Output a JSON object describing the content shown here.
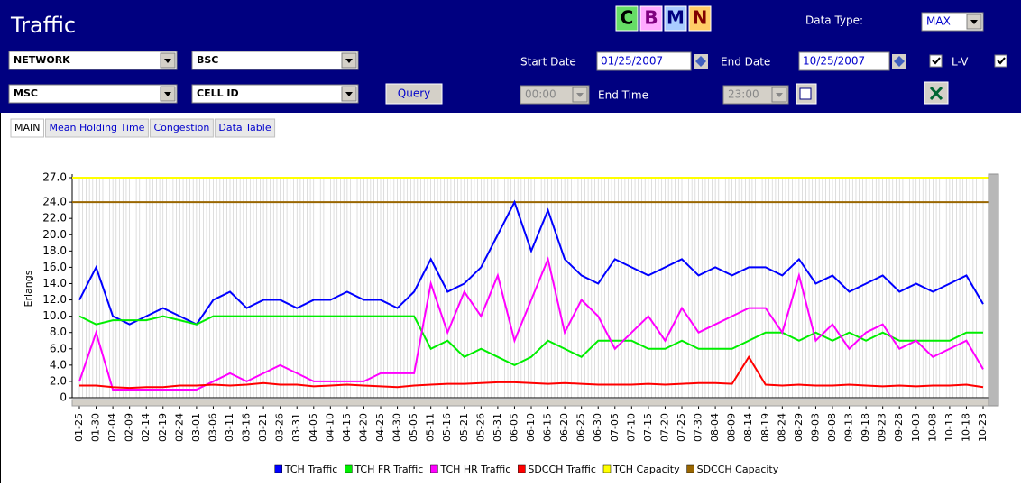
{
  "header": {
    "title": "Traffic",
    "buttons": [
      "C",
      "B",
      "M",
      "N"
    ],
    "data_type_label": "Data Type:",
    "data_type": "MAX",
    "selects": [
      "NETWORK",
      "BSC",
      "MSC",
      "CELL ID"
    ],
    "query": "Query",
    "start_date_label": "Start Date",
    "start_date": "01/25/2007",
    "end_date_label": "End Date",
    "end_date": "10/25/2007",
    "lv_label": "L-V",
    "start_time": "00:00",
    "end_time_label": "End Time",
    "end_time": "23:00"
  },
  "tabs": [
    "MAIN",
    "Mean Holding Time",
    "Congestion",
    "Data Table"
  ],
  "chart_data": {
    "type": "line",
    "y_label": "Erlangs",
    "categories": [
      "01-25",
      "01-30",
      "02-04",
      "02-09",
      "02-14",
      "02-19",
      "02-24",
      "03-01",
      "03-06",
      "03-11",
      "03-16",
      "03-21",
      "03-26",
      "03-31",
      "04-05",
      "04-10",
      "04-15",
      "04-20",
      "04-25",
      "04-30",
      "05-05",
      "05-11",
      "05-16",
      "05-21",
      "05-26",
      "05-31",
      "06-05",
      "06-10",
      "06-15",
      "06-20",
      "06-25",
      "06-30",
      "07-05",
      "07-10",
      "07-15",
      "07-20",
      "07-25",
      "07-30",
      "08-04",
      "08-09",
      "08-14",
      "08-19",
      "08-24",
      "08-29",
      "09-03",
      "09-08",
      "09-13",
      "09-18",
      "09-23",
      "09-28",
      "10-03",
      "10-08",
      "10-13",
      "10-18",
      "10-23"
    ],
    "series": [
      {
        "name": "TCH Traffic",
        "color": "#0000ff",
        "values": [
          12,
          16,
          10,
          9,
          10,
          11,
          10,
          9,
          12,
          13,
          11,
          12,
          12,
          11,
          12,
          12,
          13,
          12,
          12,
          11,
          13,
          17,
          13,
          14,
          16,
          20,
          24,
          18,
          23,
          17,
          15,
          14,
          17,
          16,
          15,
          16,
          17,
          15,
          16,
          15,
          16,
          16,
          15,
          17,
          14,
          15,
          13,
          14,
          15,
          13,
          14,
          13,
          14,
          15,
          11.5
        ]
      },
      {
        "name": "TCH FR Traffic",
        "color": "#00ee00",
        "values": [
          10,
          9,
          9.5,
          9.5,
          9.5,
          10,
          9.5,
          9,
          10,
          10,
          10,
          10,
          10,
          10,
          10,
          10,
          10,
          10,
          10,
          10,
          10,
          6,
          7,
          5,
          6,
          5,
          4,
          5,
          7,
          6,
          5,
          7,
          7,
          7,
          6,
          6,
          7,
          6,
          6,
          6,
          7,
          8,
          8,
          7,
          8,
          7,
          8,
          7,
          8,
          7,
          7,
          7,
          7,
          8,
          8
        ]
      },
      {
        "name": "TCH HR Traffic",
        "color": "#ff00ff",
        "values": [
          2,
          8,
          1,
          1,
          1,
          1,
          1,
          1,
          2,
          3,
          2,
          3,
          4,
          3,
          2,
          2,
          2,
          2,
          3,
          3,
          3,
          14,
          8,
          13,
          10,
          15,
          7,
          12,
          17,
          8,
          12,
          10,
          6,
          8,
          10,
          7,
          11,
          8,
          9,
          10,
          11,
          11,
          8,
          15,
          7,
          9,
          6,
          8,
          9,
          6,
          7,
          5,
          6,
          7,
          3.5
        ]
      },
      {
        "name": "SDCCH Traffic",
        "color": "#ff0000",
        "values": [
          1.5,
          1.5,
          1.3,
          1.2,
          1.3,
          1.3,
          1.5,
          1.5,
          1.6,
          1.5,
          1.6,
          1.8,
          1.6,
          1.6,
          1.4,
          1.5,
          1.6,
          1.5,
          1.4,
          1.3,
          1.5,
          1.6,
          1.7,
          1.7,
          1.8,
          1.9,
          1.9,
          1.8,
          1.7,
          1.8,
          1.7,
          1.6,
          1.6,
          1.6,
          1.7,
          1.6,
          1.7,
          1.8,
          1.8,
          1.7,
          5,
          1.6,
          1.5,
          1.6,
          1.5,
          1.5,
          1.6,
          1.5,
          1.4,
          1.5,
          1.4,
          1.5,
          1.5,
          1.6,
          1.3
        ]
      }
    ],
    "lines": [
      {
        "name": "TCH Capacity",
        "color": "#ffff00",
        "value": 27
      },
      {
        "name": "SDCCH Capacity",
        "color": "#996600",
        "value": 24
      }
    ],
    "ylim": [
      0,
      27
    ],
    "yticks": [
      0,
      {
        "value": 2,
        "label": "2.0"
      },
      {
        "value": 4,
        "label": "4.0"
      },
      {
        "value": 6,
        "label": "6.0"
      },
      {
        "value": 8,
        "label": "8.0"
      },
      {
        "value": 10,
        "label": "10.0"
      },
      {
        "value": 12,
        "label": "12.0"
      },
      {
        "value": 14,
        "label": "14.0"
      },
      {
        "value": 16,
        "label": "16.0"
      },
      {
        "value": 18,
        "label": "18.0"
      },
      {
        "value": 20,
        "label": "20.0"
      },
      {
        "value": 22,
        "label": "22.0"
      },
      {
        "value": 24,
        "label": "24.0"
      },
      {
        "value": 27,
        "label": "27.0"
      }
    ],
    "grid": true
  }
}
